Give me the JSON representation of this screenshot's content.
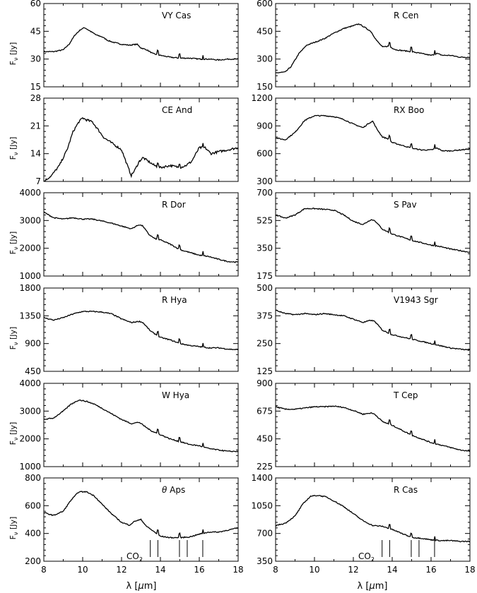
{
  "figure": {
    "ylabel_panel": "F",
    "ylabel_sub": "ν",
    "ylabel_unit": " [Jy]",
    "xlabel_prefix": "λ [",
    "xlabel_mu": "μ",
    "xlabel_suffix": "m]",
    "co2_label": "CO",
    "co2_sub": "2",
    "co2_band_centers_um": [
      13.48,
      13.87,
      14.98,
      15.38,
      16.18
    ]
  },
  "chart_data": [
    {
      "type": "line",
      "title": "VY Cas",
      "x_range": [
        8,
        18
      ],
      "ylim": [
        15,
        60
      ],
      "yticks": [
        15,
        30,
        45,
        60
      ],
      "series": [
        {
          "x": [
            8,
            8.5,
            9,
            9.3,
            9.6,
            9.9,
            10.1,
            10.4,
            10.7,
            11,
            11.3,
            11.6,
            12,
            12.4,
            12.8,
            13,
            13.3,
            13.6,
            14,
            14.5,
            15,
            15.5,
            16,
            16.5,
            17,
            17.5,
            18
          ],
          "y": [
            34,
            34,
            35,
            38,
            43,
            46,
            47,
            45,
            43,
            42,
            40,
            39,
            38,
            37.5,
            38,
            36,
            35,
            33,
            32,
            31,
            30.5,
            30.5,
            30,
            30,
            29.5,
            30,
            30
          ]
        }
      ]
    },
    {
      "type": "line",
      "title": "R Cen",
      "x_range": [
        8,
        18
      ],
      "ylim": [
        150,
        600
      ],
      "yticks": [
        150,
        300,
        450,
        600
      ],
      "series": [
        {
          "x": [
            8,
            8.5,
            8.8,
            9.2,
            9.6,
            10,
            10.5,
            11,
            11.5,
            12,
            12.3,
            12.6,
            12.9,
            13.2,
            13.5,
            13.8,
            14.2,
            15,
            15.5,
            16,
            16.3,
            16.6,
            17,
            17.5,
            18
          ],
          "y": [
            225,
            230,
            260,
            330,
            375,
            390,
            410,
            440,
            465,
            480,
            490,
            470,
            450,
            400,
            365,
            370,
            350,
            340,
            330,
            320,
            330,
            320,
            320,
            310,
            310
          ]
        }
      ]
    },
    {
      "type": "line",
      "title": "CE And",
      "x_range": [
        8,
        18
      ],
      "ylim": [
        7,
        28
      ],
      "yticks": [
        7,
        14,
        21,
        28
      ],
      "series": [
        {
          "x": [
            8,
            8.4,
            8.8,
            9.2,
            9.5,
            9.8,
            10,
            10.2,
            10.5,
            10.8,
            11.1,
            11.4,
            11.7,
            12,
            12.3,
            12.5,
            12.7,
            12.9,
            13.1,
            13.4,
            13.7,
            14,
            14.5,
            15,
            15.3,
            15.6,
            16,
            16.3,
            16.6,
            17,
            17.5,
            18
          ],
          "y": [
            7,
            8.5,
            11,
            15,
            19.5,
            22,
            23,
            22.5,
            22,
            20,
            18,
            17,
            16,
            15,
            11,
            8.5,
            10,
            12,
            13,
            12,
            11,
            10.5,
            11,
            10.5,
            11,
            12,
            15.5,
            15.5,
            14,
            14.5,
            15,
            15.5
          ]
        }
      ]
    },
    {
      "type": "line",
      "title": "RX Boo",
      "x_range": [
        8,
        18
      ],
      "ylim": [
        300,
        1200
      ],
      "yticks": [
        300,
        600,
        900,
        1200
      ],
      "series": [
        {
          "x": [
            8,
            8.5,
            9,
            9.5,
            10,
            10.5,
            11,
            11.5,
            12,
            12.5,
            12.8,
            13,
            13.2,
            13.5,
            13.8,
            14,
            14.5,
            15,
            15.5,
            16,
            16.3,
            16.6,
            17,
            17.5,
            18
          ],
          "y": [
            770,
            750,
            830,
            960,
            1010,
            1010,
            1000,
            970,
            920,
            880,
            930,
            950,
            870,
            780,
            760,
            720,
            690,
            660,
            640,
            640,
            660,
            630,
            630,
            640,
            650
          ]
        }
      ]
    },
    {
      "type": "line",
      "title": "R Dor",
      "x_range": [
        8,
        18
      ],
      "ylim": [
        1000,
        4000
      ],
      "yticks": [
        1000,
        2000,
        3000,
        4000
      ],
      "series": [
        {
          "x": [
            8,
            8.5,
            9,
            9.5,
            10,
            10.5,
            11,
            11.5,
            12,
            12.5,
            12.9,
            13.1,
            13.4,
            13.7,
            14,
            14.5,
            15,
            15.5,
            16,
            16.5,
            17,
            17.5,
            18
          ],
          "y": [
            3300,
            3100,
            3050,
            3100,
            3050,
            3050,
            2980,
            2900,
            2800,
            2700,
            2850,
            2800,
            2500,
            2350,
            2300,
            2150,
            1950,
            1850,
            1750,
            1700,
            1600,
            1520,
            1500
          ]
        }
      ]
    },
    {
      "type": "line",
      "title": "S Pav",
      "x_range": [
        8,
        18
      ],
      "ylim": [
        175,
        700
      ],
      "yticks": [
        175,
        350,
        525,
        700
      ],
      "series": [
        {
          "x": [
            8,
            8.5,
            9,
            9.5,
            10,
            10.5,
            11,
            11.5,
            12,
            12.5,
            12.9,
            13.1,
            13.5,
            14,
            14.5,
            15,
            15.5,
            16,
            16.5,
            17,
            17.5,
            18
          ],
          "y": [
            560,
            540,
            560,
            600,
            600,
            595,
            590,
            560,
            520,
            500,
            530,
            525,
            470,
            440,
            420,
            400,
            385,
            370,
            360,
            345,
            335,
            325
          ]
        }
      ]
    },
    {
      "type": "line",
      "title": "R Hya",
      "x_range": [
        8,
        18
      ],
      "ylim": [
        450,
        1800
      ],
      "yticks": [
        450,
        900,
        1350,
        1800
      ],
      "series": [
        {
          "x": [
            8,
            8.5,
            9,
            9.5,
            10,
            10.5,
            11,
            11.5,
            12,
            12.5,
            12.9,
            13.1,
            13.5,
            14,
            14.5,
            15,
            15.5,
            16,
            16.5,
            17,
            17.5,
            18
          ],
          "y": [
            1320,
            1280,
            1320,
            1380,
            1420,
            1420,
            1410,
            1380,
            1300,
            1240,
            1260,
            1240,
            1100,
            1000,
            960,
            900,
            870,
            850,
            830,
            830,
            810,
            800
          ]
        }
      ]
    },
    {
      "type": "line",
      "title": "V1943 Sgr",
      "x_range": [
        8,
        18
      ],
      "ylim": [
        125,
        500
      ],
      "yticks": [
        125,
        250,
        375,
        500
      ],
      "series": [
        {
          "x": [
            8,
            8.5,
            9,
            9.5,
            10,
            10.5,
            11,
            11.5,
            12,
            12.5,
            12.9,
            13.1,
            13.5,
            14,
            14.5,
            15,
            15.5,
            16,
            16.5,
            17,
            17.5,
            18
          ],
          "y": [
            400,
            385,
            380,
            385,
            380,
            385,
            380,
            375,
            360,
            345,
            355,
            350,
            310,
            290,
            280,
            270,
            260,
            250,
            240,
            230,
            225,
            220
          ]
        }
      ]
    },
    {
      "type": "line",
      "title": "W Hya",
      "x_range": [
        8,
        18
      ],
      "ylim": [
        1000,
        4000
      ],
      "yticks": [
        1000,
        2000,
        3000,
        4000
      ],
      "series": [
        {
          "x": [
            8,
            8.5,
            9,
            9.4,
            9.8,
            10.2,
            10.6,
            11,
            11.5,
            12,
            12.5,
            12.9,
            13.1,
            13.5,
            14,
            14.5,
            15,
            15.5,
            16,
            16.5,
            17,
            17.5,
            18
          ],
          "y": [
            2700,
            2750,
            3000,
            3250,
            3400,
            3350,
            3250,
            3100,
            2900,
            2700,
            2550,
            2600,
            2500,
            2300,
            2150,
            2000,
            1900,
            1800,
            1750,
            1650,
            1600,
            1550,
            1550
          ]
        }
      ]
    },
    {
      "type": "line",
      "title": "T Cep",
      "x_range": [
        8,
        18
      ],
      "ylim": [
        225,
        900
      ],
      "yticks": [
        225,
        450,
        675,
        900
      ],
      "series": [
        {
          "x": [
            8,
            8.5,
            9,
            9.5,
            10,
            10.5,
            11,
            11.5,
            12,
            12.5,
            12.9,
            13.1,
            13.5,
            14,
            14.5,
            15,
            15.5,
            16,
            16.5,
            17,
            17.5,
            18
          ],
          "y": [
            710,
            690,
            690,
            700,
            710,
            710,
            715,
            705,
            680,
            650,
            660,
            650,
            590,
            560,
            520,
            480,
            450,
            420,
            400,
            380,
            360,
            350
          ]
        }
      ]
    },
    {
      "type": "line",
      "title": "θ Aps",
      "x_range": [
        8,
        18
      ],
      "ylim": [
        200,
        800
      ],
      "yticks": [
        200,
        400,
        600,
        800
      ],
      "series": [
        {
          "x": [
            8,
            8.5,
            9,
            9.4,
            9.8,
            10.2,
            10.6,
            11,
            11.5,
            12,
            12.4,
            12.7,
            13,
            13.3,
            13.6,
            14,
            14.5,
            15,
            15.5,
            16,
            16.5,
            17,
            17.5,
            18
          ],
          "y": [
            550,
            530,
            560,
            640,
            700,
            700,
            670,
            610,
            540,
            480,
            460,
            490,
            500,
            450,
            420,
            380,
            370,
            370,
            375,
            395,
            410,
            410,
            425,
            440
          ]
        }
      ]
    },
    {
      "type": "line",
      "title": "R Cas",
      "x_range": [
        8,
        18
      ],
      "ylim": [
        350,
        1400
      ],
      "yticks": [
        350,
        700,
        1050,
        1400
      ],
      "series": [
        {
          "x": [
            8,
            8.5,
            9,
            9.4,
            9.8,
            10.2,
            10.6,
            11,
            11.5,
            12,
            12.5,
            13,
            13.5,
            14,
            14.5,
            15,
            15.5,
            16,
            16.5,
            17,
            17.5,
            18
          ],
          "y": [
            800,
            830,
            920,
            1070,
            1170,
            1180,
            1160,
            1110,
            1040,
            950,
            860,
            800,
            790,
            750,
            700,
            650,
            640,
            620,
            610,
            610,
            600,
            600
          ]
        }
      ]
    }
  ]
}
